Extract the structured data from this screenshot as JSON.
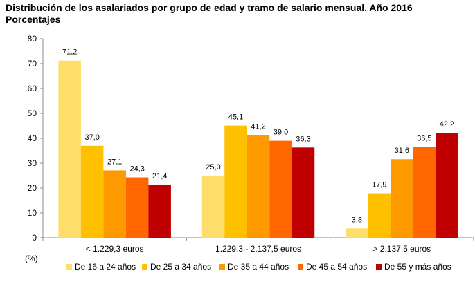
{
  "chart_data": {
    "type": "bar",
    "title": "Distribución de los asalariados por grupo de edad y tramo de salario mensual. Año 2016",
    "subtitle": "Porcentajes",
    "ylabel": "(%)",
    "xlabel": "",
    "ylim": [
      0,
      80
    ],
    "yticks": [
      0,
      10,
      20,
      30,
      40,
      50,
      60,
      70,
      80
    ],
    "grid": false,
    "legend_position": "bottom",
    "categories": [
      "< 1.229,3 euros",
      "1.229,3 - 2.137,5 euros",
      "> 2.137,5 euros"
    ],
    "series": [
      {
        "name": "De 16 a 24 años",
        "color": "#FFDD6B",
        "values": [
          71.2,
          25.0,
          3.8
        ],
        "labels": [
          "71,2",
          "25,0",
          "3,8"
        ]
      },
      {
        "name": "De 25 a 34 años",
        "color": "#FFC000",
        "values": [
          37.0,
          45.1,
          17.9
        ],
        "labels": [
          "37,0",
          "45,1",
          "17,9"
        ]
      },
      {
        "name": "De 35 a 44 años",
        "color": "#FF9900",
        "values": [
          27.1,
          41.2,
          31.6
        ],
        "labels": [
          "27,1",
          "41,2",
          "31,6"
        ]
      },
      {
        "name": "De 45 a 54 años",
        "color": "#FF6600",
        "values": [
          24.3,
          39.0,
          36.5
        ],
        "labels": [
          "24,3",
          "39,0",
          "36,5"
        ]
      },
      {
        "name": "De 55 y más años",
        "color": "#C00000",
        "values": [
          21.4,
          36.3,
          42.2
        ],
        "labels": [
          "21,4",
          "36,3",
          "42,2"
        ]
      }
    ]
  }
}
